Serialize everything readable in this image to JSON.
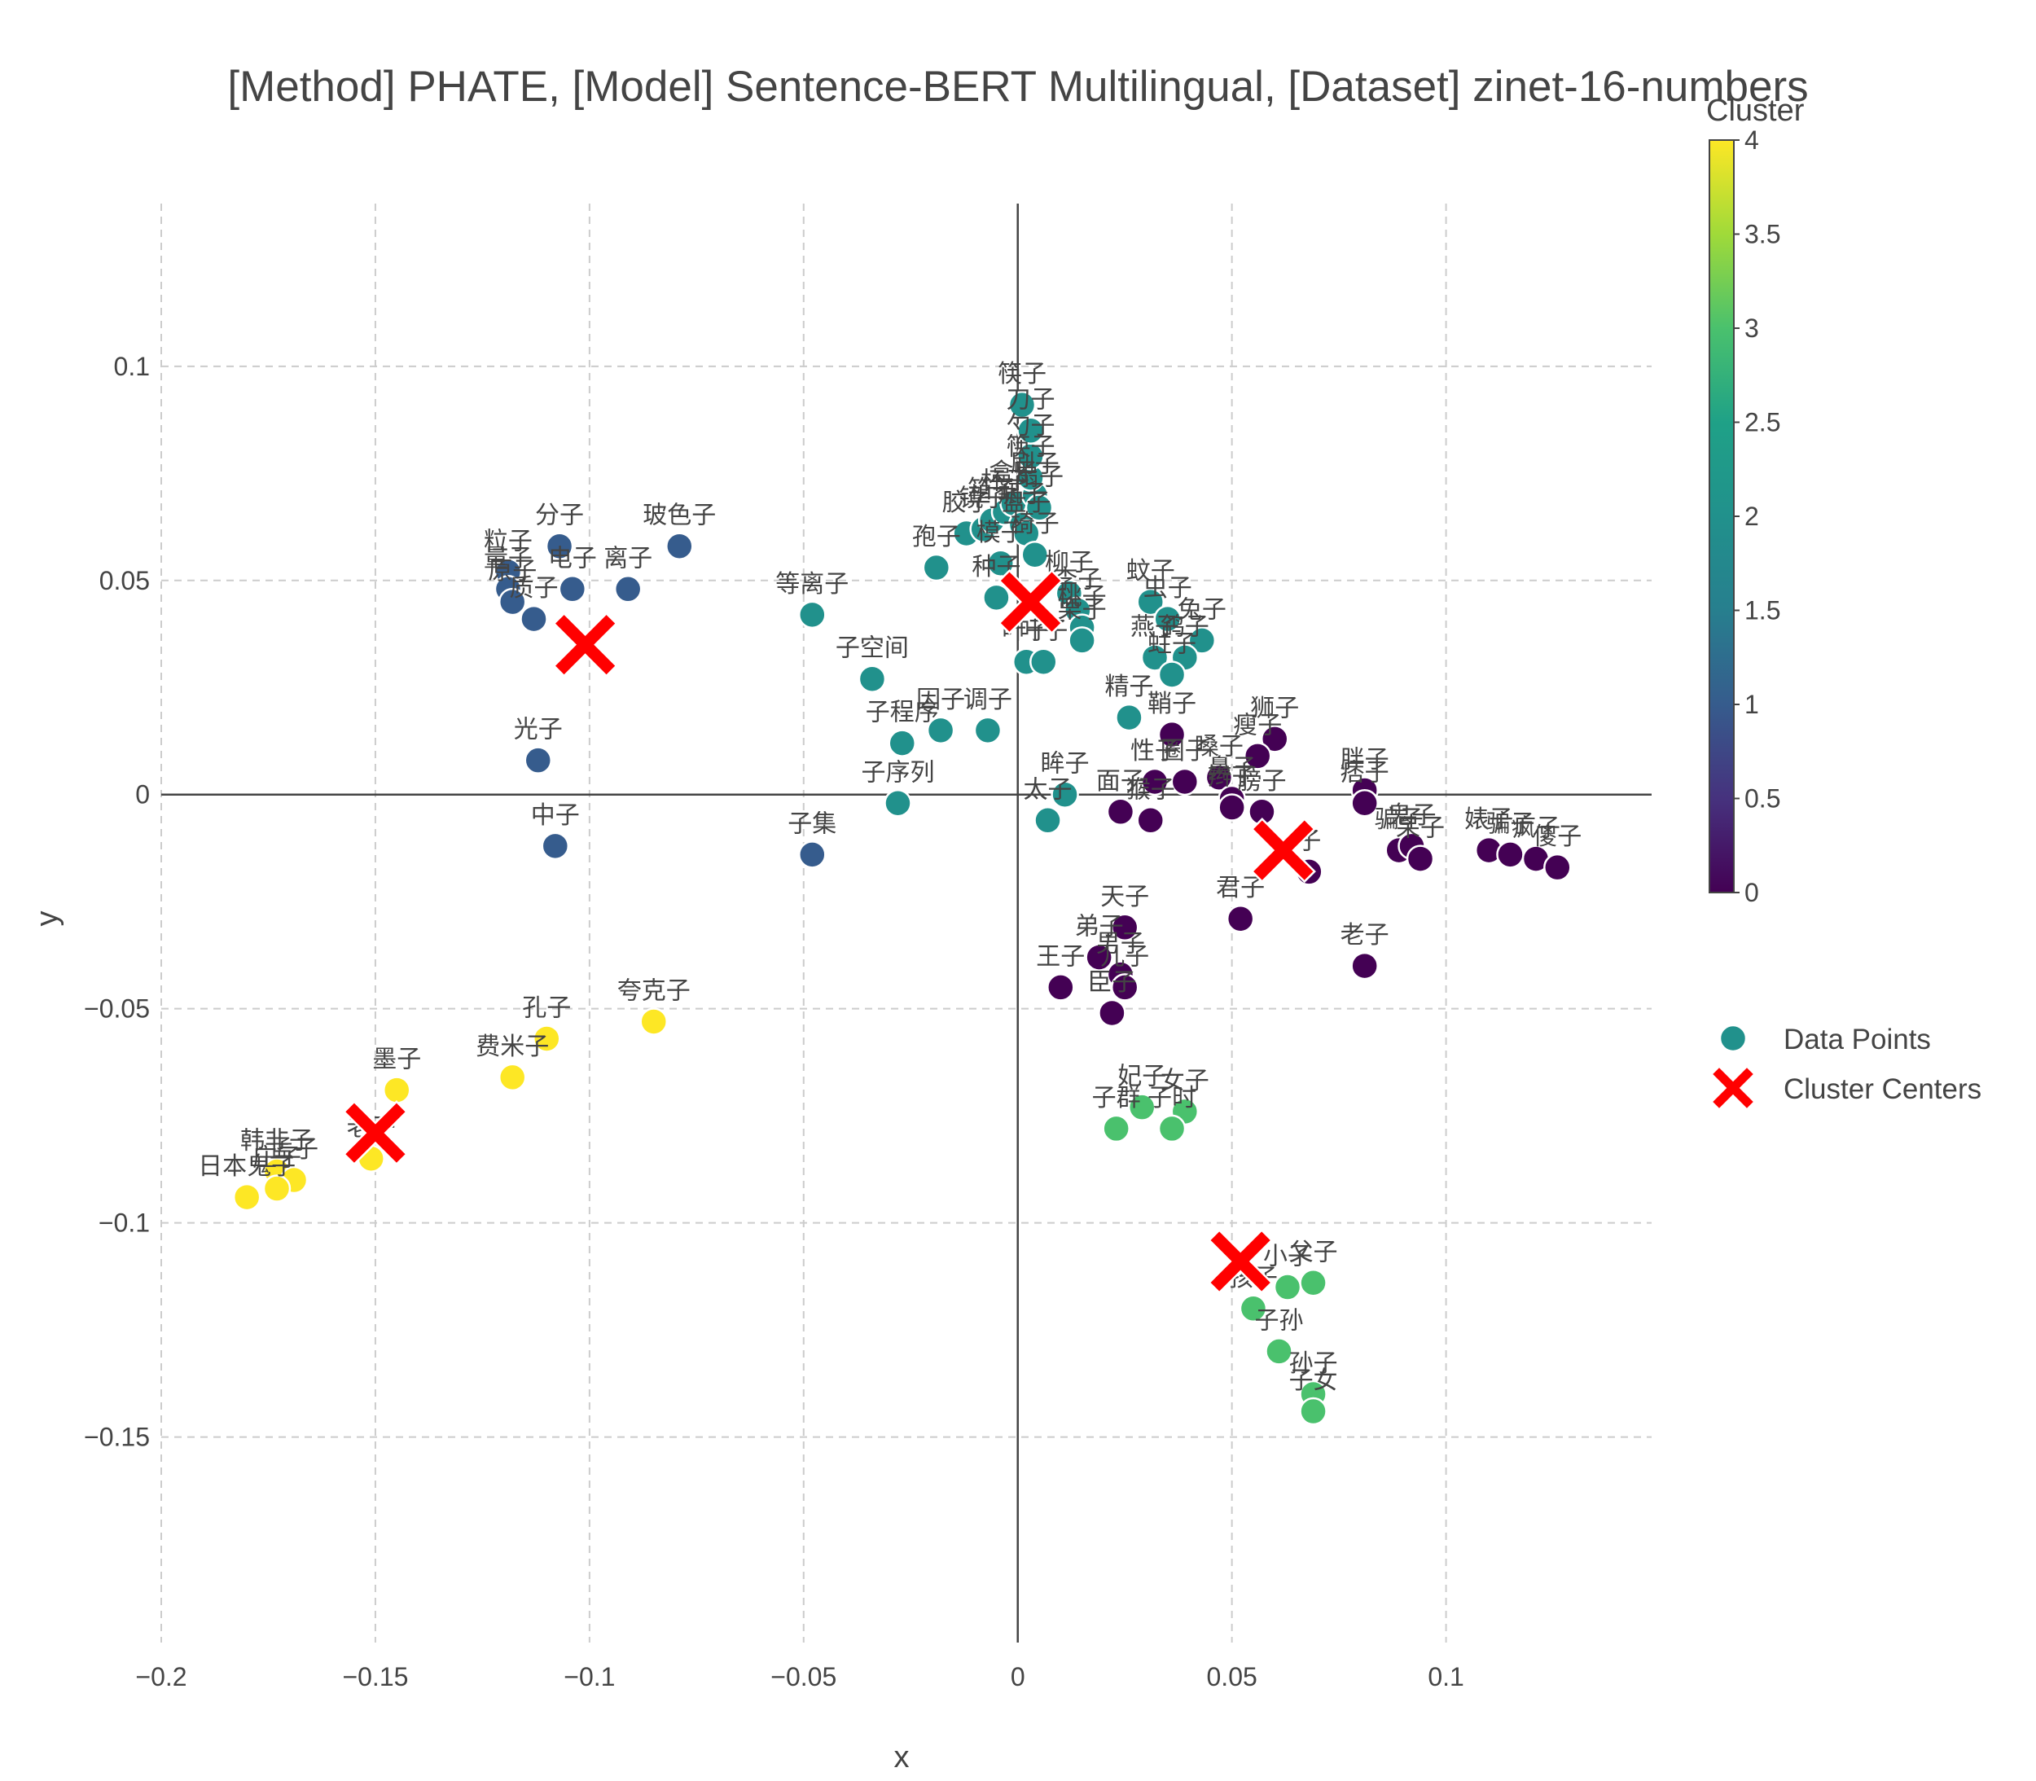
{
  "chart_data": {
    "type": "scatter",
    "title": "[Method] PHATE, [Model] Sentence-BERT Multilingual, [Dataset] zinet-16-numbers",
    "xlabel": "x",
    "ylabel": "y",
    "xlim": [
      -0.2,
      0.148
    ],
    "ylim": [
      -0.198,
      0.138
    ],
    "x_ticks": [
      -0.2,
      -0.15,
      -0.1,
      -0.05,
      0,
      0.05,
      0.1
    ],
    "x_tick_labels": [
      "−0.2",
      "−0.15",
      "−0.1",
      "−0.05",
      "0",
      "0.05",
      "0.1"
    ],
    "y_ticks": [
      0.1,
      0.05,
      0,
      -0.05,
      -0.1,
      -0.15
    ],
    "y_tick_labels": [
      "0.1",
      "0.05",
      "0",
      "−0.05",
      "−0.1",
      "−0.15"
    ],
    "grid": true,
    "colorbar": {
      "title": "Cluster",
      "range": [
        0,
        4
      ],
      "colorscale": "viridis",
      "ticks": [
        0,
        0.5,
        1,
        1.5,
        2,
        2.5,
        3,
        3.5,
        4
      ],
      "tick_labels": [
        "0",
        "0.5",
        "1",
        "1.5",
        "2",
        "2.5",
        "3",
        "3.5",
        "4"
      ]
    },
    "legend": {
      "placement": "right",
      "items": [
        {
          "label": "Data Points",
          "color": "#21918c",
          "symbol": "circle"
        },
        {
          "label": "Cluster Centers",
          "color": "#ff0000",
          "symbol": "x"
        }
      ]
    },
    "points": [
      {
        "x": -0.119,
        "y": 0.052,
        "label": "粒子",
        "cluster": 1
      },
      {
        "x": -0.119,
        "y": 0.048,
        "label": "量子",
        "cluster": 1
      },
      {
        "x": -0.118,
        "y": 0.045,
        "label": "原子",
        "cluster": 1
      },
      {
        "x": -0.113,
        "y": 0.041,
        "label": "质子",
        "cluster": 1
      },
      {
        "x": -0.107,
        "y": 0.058,
        "label": "分子",
        "cluster": 1
      },
      {
        "x": -0.104,
        "y": 0.048,
        "label": "电子",
        "cluster": 1
      },
      {
        "x": -0.091,
        "y": 0.048,
        "label": "离子",
        "cluster": 1
      },
      {
        "x": -0.079,
        "y": 0.058,
        "label": "玻色子",
        "cluster": 1
      },
      {
        "x": -0.112,
        "y": 0.008,
        "label": "光子",
        "cluster": 1
      },
      {
        "x": -0.108,
        "y": -0.012,
        "label": "中子",
        "cluster": 1
      },
      {
        "x": -0.048,
        "y": -0.014,
        "label": "子集",
        "cluster": 1
      },
      {
        "x": -0.048,
        "y": 0.042,
        "label": "等离子",
        "cluster": 2
      },
      {
        "x": -0.034,
        "y": 0.027,
        "label": "子空间",
        "cluster": 2
      },
      {
        "x": -0.027,
        "y": 0.012,
        "label": "子程序",
        "cluster": 2
      },
      {
        "x": -0.018,
        "y": 0.015,
        "label": "因子",
        "cluster": 2
      },
      {
        "x": -0.007,
        "y": 0.015,
        "label": "调子",
        "cluster": 2
      },
      {
        "x": -0.028,
        "y": -0.002,
        "label": "子序列",
        "cluster": 2
      },
      {
        "x": -0.019,
        "y": 0.053,
        "label": "孢子",
        "cluster": 2
      },
      {
        "x": -0.012,
        "y": 0.061,
        "label": "胶子",
        "cluster": 2
      },
      {
        "x": -0.008,
        "y": 0.062,
        "label": "镜子",
        "cluster": 2
      },
      {
        "x": -0.006,
        "y": 0.064,
        "label": "箱子",
        "cluster": 2
      },
      {
        "x": -0.003,
        "y": 0.066,
        "label": "杯子",
        "cluster": 2
      },
      {
        "x": -0.001,
        "y": 0.068,
        "label": "盒子",
        "cluster": 2
      },
      {
        "x": 0.001,
        "y": 0.063,
        "label": "瓶子",
        "cluster": 2
      },
      {
        "x": 0.002,
        "y": 0.061,
        "label": "盘子",
        "cluster": 2
      },
      {
        "x": 0.004,
        "y": 0.07,
        "label": "刷子",
        "cluster": 2
      },
      {
        "x": 0.005,
        "y": 0.067,
        "label": "扇子",
        "cluster": 2
      },
      {
        "x": 0.003,
        "y": 0.074,
        "label": "筷子",
        "cluster": 2
      },
      {
        "x": 0.003,
        "y": 0.079,
        "label": "勺子",
        "cluster": 2
      },
      {
        "x": 0.003,
        "y": 0.085,
        "label": "刀子",
        "cluster": 2
      },
      {
        "x": 0.001,
        "y": 0.091,
        "label": "筷子",
        "cluster": 2
      },
      {
        "x": -0.004,
        "y": 0.054,
        "label": "模子",
        "cluster": 2
      },
      {
        "x": -0.005,
        "y": 0.046,
        "label": "种子",
        "cluster": 2
      },
      {
        "x": 0.004,
        "y": 0.056,
        "label": "椅子",
        "cluster": 2
      },
      {
        "x": 0.012,
        "y": 0.047,
        "label": "柳子",
        "cluster": 2
      },
      {
        "x": 0.014,
        "y": 0.043,
        "label": "李子",
        "cluster": 2
      },
      {
        "x": 0.015,
        "y": 0.039,
        "label": "桃子",
        "cluster": 2
      },
      {
        "x": 0.015,
        "y": 0.036,
        "label": "栗子",
        "cluster": 2
      },
      {
        "x": 0.002,
        "y": 0.031,
        "label": "叶子",
        "cluster": 2
      },
      {
        "x": 0.006,
        "y": 0.031,
        "label": "叶子",
        "cluster": 2
      },
      {
        "x": 0.031,
        "y": 0.045,
        "label": "蚊子",
        "cluster": 2
      },
      {
        "x": 0.035,
        "y": 0.041,
        "label": "虫子",
        "cluster": 2
      },
      {
        "x": 0.043,
        "y": 0.036,
        "label": "兔子",
        "cluster": 2
      },
      {
        "x": 0.032,
        "y": 0.032,
        "label": "燕子",
        "cluster": 2
      },
      {
        "x": 0.039,
        "y": 0.032,
        "label": "鸽子",
        "cluster": 2
      },
      {
        "x": 0.036,
        "y": 0.028,
        "label": "蛀子",
        "cluster": 2
      },
      {
        "x": 0.026,
        "y": 0.018,
        "label": "精子",
        "cluster": 2
      },
      {
        "x": 0.011,
        "y": 0,
        "label": "眸子",
        "cluster": 2
      },
      {
        "x": 0.007,
        "y": -0.006,
        "label": "太子",
        "cluster": 2
      },
      {
        "x": 0.036,
        "y": 0.014,
        "label": "鞘子",
        "cluster": 0
      },
      {
        "x": 0.06,
        "y": 0.013,
        "label": "狮子",
        "cluster": 0
      },
      {
        "x": 0.056,
        "y": 0.009,
        "label": "瘦子",
        "cluster": 0
      },
      {
        "x": 0.032,
        "y": 0.003,
        "label": "性子",
        "cluster": 0
      },
      {
        "x": 0.039,
        "y": 0.003,
        "label": "圈子",
        "cluster": 0
      },
      {
        "x": 0.047,
        "y": 0.004,
        "label": "嗓子",
        "cluster": 0
      },
      {
        "x": 0.05,
        "y": -0.001,
        "label": "鼻子",
        "cluster": 0
      },
      {
        "x": 0.05,
        "y": -0.003,
        "label": "辫子",
        "cluster": 0
      },
      {
        "x": 0.057,
        "y": -0.004,
        "label": "膀子",
        "cluster": 0
      },
      {
        "x": 0.024,
        "y": -0.004,
        "label": "面子",
        "cluster": 0
      },
      {
        "x": 0.031,
        "y": -0.006,
        "label": "猴子",
        "cluster": 0
      },
      {
        "x": 0.068,
        "y": -0.018,
        "label": "子",
        "cluster": 0
      },
      {
        "x": 0.081,
        "y": 0.001,
        "label": "胖子",
        "cluster": 0
      },
      {
        "x": 0.081,
        "y": -0.002,
        "label": "痞子",
        "cluster": 0
      },
      {
        "x": 0.089,
        "y": -0.013,
        "label": "骗子",
        "cluster": 0
      },
      {
        "x": 0.092,
        "y": -0.012,
        "label": "鬼子",
        "cluster": 0
      },
      {
        "x": 0.094,
        "y": -0.015,
        "label": "呆子",
        "cluster": 0
      },
      {
        "x": 0.11,
        "y": -0.013,
        "label": "婊子",
        "cluster": 0
      },
      {
        "x": 0.115,
        "y": -0.014,
        "label": "骗子",
        "cluster": 0
      },
      {
        "x": 0.121,
        "y": -0.015,
        "label": "疯子",
        "cluster": 0
      },
      {
        "x": 0.126,
        "y": -0.017,
        "label": "傻子",
        "cluster": 0
      },
      {
        "x": 0.052,
        "y": -0.029,
        "label": "君子",
        "cluster": 0
      },
      {
        "x": 0.081,
        "y": -0.04,
        "label": "老子",
        "cluster": 0
      },
      {
        "x": 0.025,
        "y": -0.031,
        "label": "天子",
        "cluster": 0
      },
      {
        "x": 0.019,
        "y": -0.038,
        "label": "弟子",
        "cluster": 0
      },
      {
        "x": 0.024,
        "y": -0.042,
        "label": "男子",
        "cluster": 0
      },
      {
        "x": 0.025,
        "y": -0.045,
        "label": "儿子",
        "cluster": 0
      },
      {
        "x": 0.01,
        "y": -0.045,
        "label": "王子",
        "cluster": 0
      },
      {
        "x": 0.022,
        "y": -0.051,
        "label": "臣子",
        "cluster": 0
      },
      {
        "x": 0.029,
        "y": -0.073,
        "label": "妃子",
        "cluster": 3
      },
      {
        "x": 0.039,
        "y": -0.074,
        "label": "女子",
        "cluster": 3
      },
      {
        "x": 0.023,
        "y": -0.078,
        "label": "子群",
        "cluster": 3
      },
      {
        "x": 0.036,
        "y": -0.078,
        "label": "子时",
        "cluster": 3
      },
      {
        "x": 0.063,
        "y": -0.115,
        "label": "小子",
        "cluster": 3
      },
      {
        "x": 0.069,
        "y": -0.114,
        "label": "父子",
        "cluster": 3
      },
      {
        "x": 0.055,
        "y": -0.12,
        "label": "孩子",
        "cluster": 3
      },
      {
        "x": 0.061,
        "y": -0.13,
        "label": "子孙",
        "cluster": 3
      },
      {
        "x": 0.069,
        "y": -0.14,
        "label": "孙子",
        "cluster": 3
      },
      {
        "x": 0.069,
        "y": -0.144,
        "label": "子女",
        "cluster": 3
      },
      {
        "x": -0.11,
        "y": -0.057,
        "label": "孔子",
        "cluster": 4
      },
      {
        "x": -0.085,
        "y": -0.053,
        "label": "夸克子",
        "cluster": 4
      },
      {
        "x": -0.118,
        "y": -0.066,
        "label": "费米子",
        "cluster": 4
      },
      {
        "x": -0.145,
        "y": -0.069,
        "label": "墨子",
        "cluster": 4
      },
      {
        "x": -0.151,
        "y": -0.085,
        "label": "老子",
        "cluster": 4
      },
      {
        "x": -0.173,
        "y": -0.088,
        "label": "韩非子",
        "cluster": 4
      },
      {
        "x": -0.169,
        "y": -0.09,
        "label": "孟子",
        "cluster": 4
      },
      {
        "x": -0.173,
        "y": -0.092,
        "label": "庄子",
        "cluster": 4
      },
      {
        "x": -0.18,
        "y": -0.094,
        "label": "日本鬼子",
        "cluster": 4
      }
    ],
    "cluster_centers": [
      {
        "x": 0.062,
        "y": -0.013,
        "cluster": 0
      },
      {
        "x": -0.101,
        "y": 0.035,
        "cluster": 1
      },
      {
        "x": 0.003,
        "y": 0.045,
        "cluster": 2
      },
      {
        "x": 0.052,
        "y": -0.109,
        "cluster": 3
      },
      {
        "x": -0.15,
        "y": -0.079,
        "cluster": 4
      }
    ]
  }
}
